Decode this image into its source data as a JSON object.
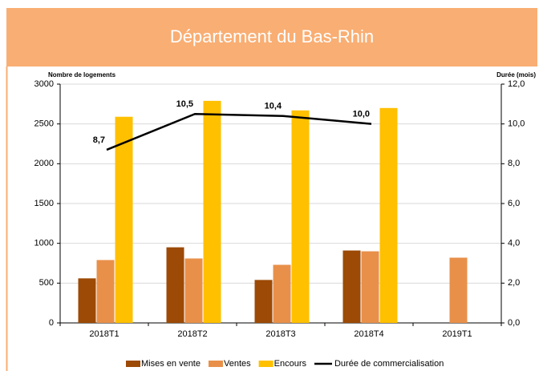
{
  "chart_data": {
    "type": "bar",
    "title": "Département du Bas-Rhin",
    "y_label": "Nombre de logements",
    "y2_label": "Durée (mois)",
    "categories": [
      "2018T1",
      "2018T2",
      "2018T3",
      "2018T4",
      "2019T1"
    ],
    "series": [
      {
        "name": "Mises en vente",
        "color": "#9c4a06",
        "values": [
          560,
          950,
          540,
          910,
          null
        ]
      },
      {
        "name": "Ventes",
        "color": "#e8904a",
        "values": [
          790,
          810,
          730,
          900,
          820
        ]
      },
      {
        "name": "Encours",
        "color": "#ffc000",
        "values": [
          2590,
          2790,
          2670,
          2700,
          null
        ]
      },
      {
        "name": "Durée de commercialisation",
        "type": "line",
        "axis": "y2",
        "color": "#000000",
        "values": [
          8.7,
          10.5,
          10.4,
          10.0,
          null
        ],
        "value_labels": [
          "8,7",
          "10,5",
          "10,4",
          "10,0",
          null
        ]
      }
    ],
    "ylim": [
      0,
      3000
    ],
    "yticks": [
      0,
      500,
      1000,
      1500,
      2000,
      2500,
      3000
    ],
    "y2lim": [
      0,
      12
    ],
    "y2ticks": [
      {
        "value": 0,
        "label": "0,0"
      },
      {
        "value": 2,
        "label": "2,0"
      },
      {
        "value": 4,
        "label": "4,0"
      },
      {
        "value": 6,
        "label": "6,0"
      },
      {
        "value": 8,
        "label": "8,0"
      },
      {
        "value": 10,
        "label": "10,0"
      },
      {
        "value": 12,
        "label": "12,0"
      }
    ],
    "grid": true
  }
}
